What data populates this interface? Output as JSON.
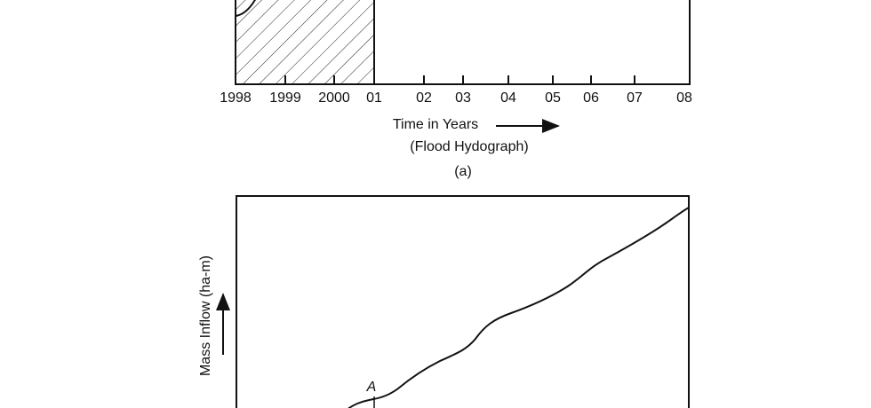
{
  "figure_a": {
    "x_tick_labels": [
      "1998",
      "1999",
      "2000",
      "01",
      "02",
      "03",
      "04",
      "05",
      "06",
      "07",
      "08"
    ],
    "x_axis_label": "Time in Years",
    "subtitle": "(Flood Hydograph)",
    "caption": "(a)"
  },
  "figure_b": {
    "y_axis_label": "Mass Inflow (ha-m)",
    "annotation": "A"
  }
}
